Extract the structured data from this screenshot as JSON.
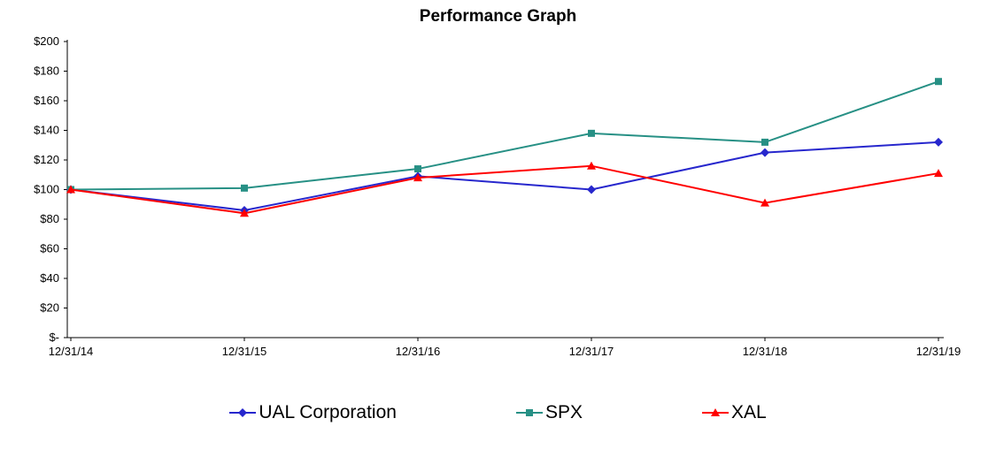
{
  "chart_data": {
    "type": "line",
    "title": "Performance Graph",
    "x": [
      "12/31/14",
      "12/31/15",
      "12/31/16",
      "12/31/17",
      "12/31/18",
      "12/31/19"
    ],
    "series": [
      {
        "name": "UAL Corporation",
        "color": "#2727cd",
        "marker": "diamond",
        "values": [
          100,
          86,
          109,
          100,
          125,
          132
        ]
      },
      {
        "name": "SPX",
        "color": "#279085",
        "marker": "square",
        "values": [
          100,
          101,
          114,
          138,
          132,
          173
        ]
      },
      {
        "name": "XAL",
        "color": "#ff0000",
        "marker": "triangle",
        "values": [
          100,
          84,
          108,
          116,
          91,
          111
        ]
      }
    ],
    "ylim": [
      0,
      200
    ],
    "ytick_step": 20,
    "ytick_labels": [
      "$-",
      "$20",
      "$40",
      "$60",
      "$80",
      "$100",
      "$120",
      "$140",
      "$160",
      "$180",
      "$200"
    ],
    "axis_color": "#000000",
    "grid": "off",
    "legend_position": "bottom"
  }
}
